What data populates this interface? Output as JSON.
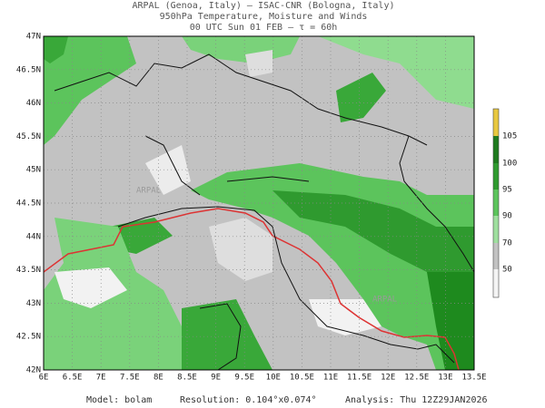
{
  "header": {
    "line1": "ARPAL (Genoa, Italy)  –  ISAC-CNR (Bologna, Italy)",
    "line2": "950hPa Temperature, Moisture and Winds",
    "line3": "00 UTC Sun 01 FEB  –  τ = 60h"
  },
  "map": {
    "lon_ticks": [
      "6E",
      "6.5E",
      "7E",
      "7.5E",
      "8E",
      "8.5E",
      "9E",
      "9.5E",
      "10E",
      "10.5E",
      "11E",
      "11.5E",
      "12E",
      "12.5E",
      "13E",
      "13.5E"
    ],
    "lat_ticks": [
      "42N",
      "42.5N",
      "43N",
      "43.5N",
      "44N",
      "44.5N",
      "45N",
      "45.5N",
      "46N",
      "46.5N",
      "47N"
    ],
    "watermark": "ARPAL"
  },
  "colorbar": {
    "labels": [
      "105",
      "100",
      "95",
      "90",
      "70",
      "50"
    ]
  },
  "footer": {
    "model": "Model: bolam",
    "resolution": "Resolution: 0.104°x0.074°",
    "analysis": "Analysis: Thu 12Z29JAN2026"
  }
}
